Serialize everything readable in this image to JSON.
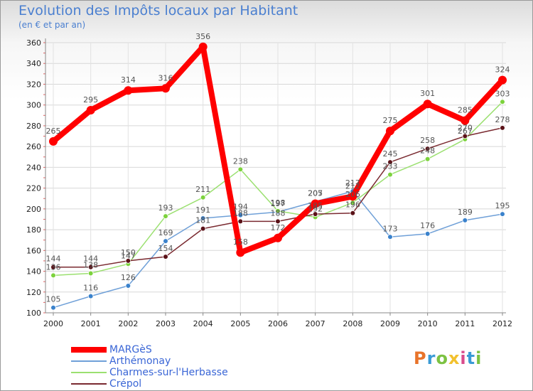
{
  "header": {
    "title": "Evolution des Impôts locaux par Habitant",
    "subtitle": "(en € et par an)"
  },
  "logo": {
    "text": "Proxiti",
    "colors": [
      "#e8732a",
      "#3a9bd5",
      "#7cc242",
      "#f2c12e",
      "#d94b8c",
      "#3a9bd5",
      "#7cc242"
    ]
  },
  "chart_data": {
    "type": "line",
    "title": "Evolution des Impôts locaux par Habitant",
    "subtitle": "(en € et par an)",
    "xlabel": "",
    "ylabel": "",
    "x": [
      "2000",
      "2001",
      "2002",
      "2003",
      "2004",
      "2005",
      "2006",
      "2007",
      "2008",
      "2009",
      "2010",
      "2011",
      "2012"
    ],
    "ylim": [
      100,
      360
    ],
    "yticks": [
      100,
      120,
      140,
      160,
      180,
      200,
      220,
      240,
      260,
      280,
      300,
      320,
      340,
      360
    ],
    "grid": true,
    "legend_position": "bottom-left",
    "series": [
      {
        "name": "MARGèS",
        "color": "#ff0000",
        "marker_color": "#ff0000",
        "values": [
          265,
          295,
          314,
          316,
          356,
          158,
          172,
          205,
          212,
          275,
          301,
          285,
          324
        ],
        "labels": [
          "265",
          "295",
          "314",
          "316",
          "356",
          "158",
          "172",
          "205",
          "212",
          "275",
          "301",
          "285",
          "324"
        ]
      },
      {
        "name": "Arthémonay",
        "color": "#6fa0d8",
        "marker_color": "#3a82cc",
        "values": [
          105,
          116,
          126,
          169,
          191,
          194,
          197,
          207,
          217,
          173,
          176,
          189,
          195
        ],
        "labels": [
          "105",
          "116",
          "126",
          "169",
          "191",
          "194",
          "197",
          "207",
          "217",
          "173",
          "176",
          "189",
          "195"
        ]
      },
      {
        "name": "Charmes-sur-l'Herbasse",
        "color": "#9be070",
        "marker_color": "#7cd23c",
        "values": [
          136,
          138,
          147,
          193,
          211,
          238,
          198,
          192,
          206,
          233,
          248,
          267,
          303
        ],
        "labels": [
          "136",
          "138",
          "147",
          "193",
          "211",
          "238",
          "198",
          "192",
          "206",
          "233",
          "248",
          "267",
          "303"
        ]
      },
      {
        "name": "Crépol",
        "color": "#7a2a30",
        "marker_color": "#5a1218",
        "values": [
          144,
          144,
          150,
          154,
          181,
          188,
          188,
          195,
          196,
          245,
          258,
          270,
          278
        ],
        "labels": [
          "144",
          "144",
          "150",
          "154",
          "181",
          "188",
          "188",
          "195",
          "196",
          "245",
          "258",
          "270",
          "278"
        ]
      }
    ]
  }
}
